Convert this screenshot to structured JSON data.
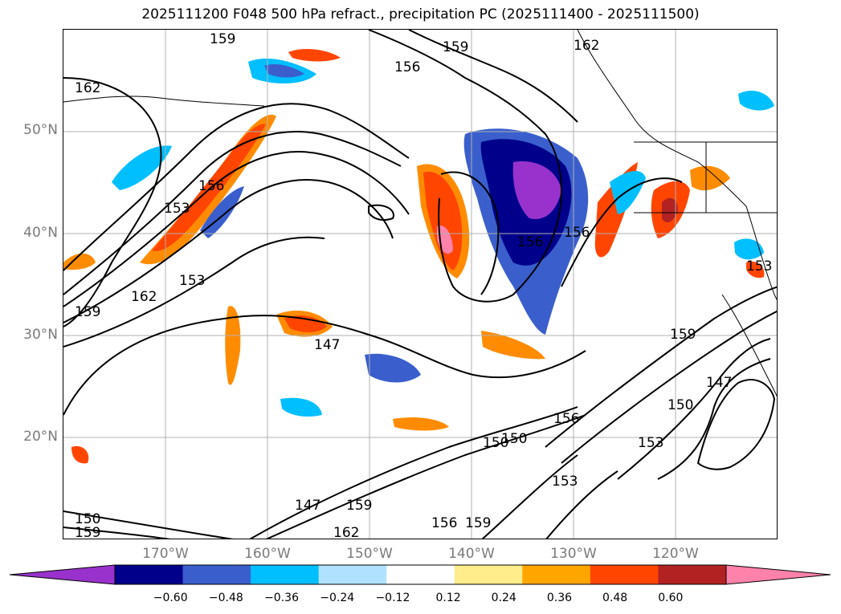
{
  "title": "2025111200 F048 500 hPa refract., precipitation PC (2025111400 - 2025111500)",
  "lat_labels": [
    "50°N",
    "40°N",
    "30°N",
    "20°N"
  ],
  "lon_labels": [
    "170°W",
    "160°W",
    "150°W",
    "140°W",
    "130°W",
    "120°W"
  ],
  "colorbar": {
    "ticks": [
      "−0.60",
      "−0.48",
      "−0.36",
      "−0.24",
      "−0.12",
      "0.12",
      "0.24",
      "0.36",
      "0.48",
      "0.60"
    ],
    "colors": [
      "#9932cc",
      "#00008b",
      "#3a5fcd",
      "#00bfff",
      "#b0e2ff",
      "#ffffff",
      "#ffec8b",
      "#ffa500",
      "#ff4500",
      "#b22222",
      "#ff82ab"
    ]
  },
  "contour_labels": [
    "159",
    "156",
    "159",
    "162",
    "162",
    "153",
    "156",
    "162",
    "153",
    "159",
    "156",
    "156",
    "147",
    "153",
    "159",
    "150",
    "147",
    "150",
    "153",
    "156",
    "150",
    "153",
    "147",
    "159",
    "162",
    "156",
    "159",
    "150",
    "159"
  ],
  "map": {
    "projection": "lat-lon",
    "lat_range": [
      10,
      60
    ],
    "lon_range": [
      -180,
      -110
    ],
    "grid": true,
    "colormap": "purple-blue-white-orange-red-pink"
  }
}
